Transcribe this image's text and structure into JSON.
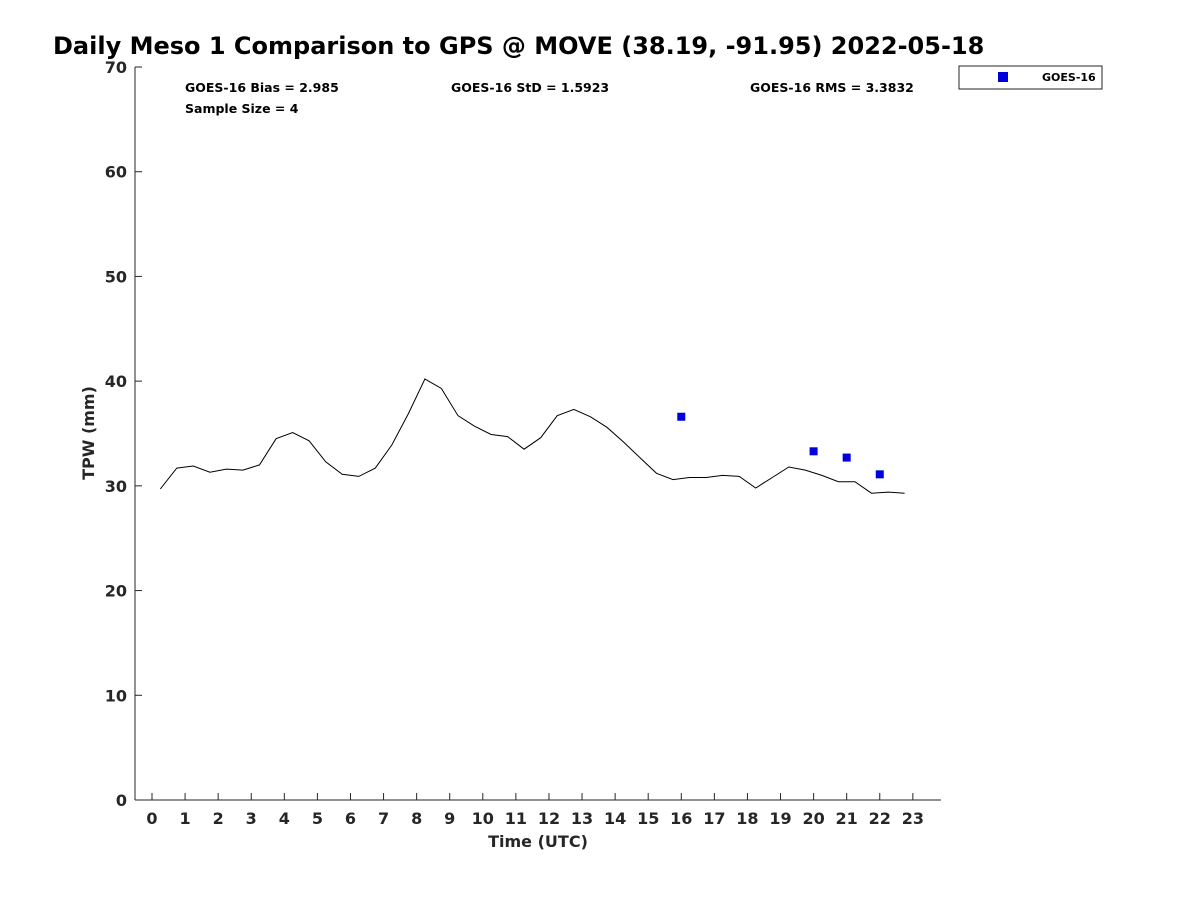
{
  "chart_data": {
    "type": "line",
    "title": "Daily Meso 1 Comparison to GPS @ MOVE (38.19, -91.95) 2022-05-18",
    "xlabel": "Time (UTC)",
    "ylabel": "TPW (mm)",
    "xlim": [
      -0.5,
      23.75
    ],
    "ylim": [
      0,
      70
    ],
    "x_ticks": [
      0,
      1,
      2,
      3,
      4,
      5,
      6,
      7,
      8,
      9,
      10,
      11,
      12,
      13,
      14,
      15,
      16,
      17,
      18,
      19,
      20,
      21,
      22,
      23
    ],
    "y_ticks": [
      0,
      10,
      20,
      30,
      40,
      50,
      60,
      70
    ],
    "grid": false,
    "legend_position": "top-right outside",
    "series": [
      {
        "kind": "line",
        "color": "#000000",
        "x": [
          0.25,
          0.75,
          1.25,
          1.75,
          2.25,
          2.75,
          3.25,
          3.75,
          4.25,
          4.75,
          5.25,
          5.75,
          6.25,
          6.75,
          7.25,
          7.75,
          8.25,
          8.75,
          9.25,
          9.75,
          10.25,
          10.75,
          11.25,
          11.75,
          12.25,
          12.75,
          13.25,
          13.75,
          14.25,
          14.75,
          15.25,
          15.75,
          16.25,
          16.75,
          17.25,
          17.75,
          18.25,
          18.75,
          19.25,
          19.75,
          20.25,
          20.75,
          21.25,
          21.75,
          22.25,
          22.75
        ],
        "y": [
          29.7,
          31.7,
          31.9,
          31.3,
          31.6,
          31.5,
          32.0,
          34.5,
          35.1,
          34.3,
          32.3,
          31.1,
          30.9,
          31.7,
          33.9,
          36.9,
          40.2,
          39.3,
          36.7,
          35.7,
          34.9,
          34.7,
          33.5,
          34.6,
          36.7,
          37.3,
          36.6,
          35.6,
          34.2,
          32.7,
          31.2,
          30.6,
          30.8,
          30.8,
          31.0,
          30.9,
          29.8,
          30.8,
          31.8,
          31.5,
          31.0,
          30.4,
          30.4,
          29.3,
          29.4,
          29.3
        ]
      },
      {
        "kind": "scatter",
        "name": "GOES-16",
        "color": "#0000dd",
        "x": [
          16,
          20,
          21,
          22
        ],
        "y": [
          36.6,
          33.3,
          32.7,
          31.1
        ]
      }
    ],
    "annotations": [
      "GOES-16 Bias = 2.985",
      "GOES-16 StD = 1.5923",
      "GOES-16 RMS = 3.3832",
      "Sample Size = 4"
    ]
  }
}
